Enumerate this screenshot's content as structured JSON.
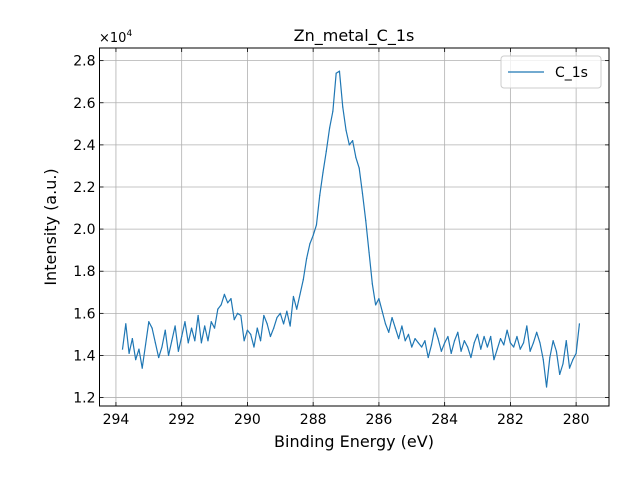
{
  "chart_data": {
    "type": "line",
    "title": "Zn_metal_C_1s",
    "xlabel": "Binding Energy (eV)",
    "ylabel": "Intensity (a.u.)",
    "xlim": [
      294.5,
      279.0
    ],
    "ylim": [
      11600,
      28600
    ],
    "x_reversed": true,
    "y_scale_label": "×10",
    "y_scale_exponent": "4",
    "xticks": [
      294,
      292,
      290,
      288,
      286,
      284,
      282,
      280
    ],
    "xtick_labels": [
      "294",
      "292",
      "290",
      "288",
      "286",
      "284",
      "282",
      "280"
    ],
    "yticks": [
      12000,
      14000,
      16000,
      18000,
      20000,
      22000,
      24000,
      26000,
      28000
    ],
    "ytick_labels": [
      "1.2",
      "1.4",
      "1.6",
      "1.8",
      "2.0",
      "2.2",
      "2.4",
      "2.6",
      "2.8"
    ],
    "grid": true,
    "legend_position": "top-right",
    "series": [
      {
        "name": "C_1s",
        "color": "#1f77b4",
        "x": [
          293.8,
          293.7,
          293.6,
          293.5,
          293.4,
          293.3,
          293.2,
          293.1,
          293.0,
          292.9,
          292.8,
          292.7,
          292.6,
          292.5,
          292.4,
          292.3,
          292.2,
          292.1,
          292.0,
          291.9,
          291.8,
          291.7,
          291.6,
          291.5,
          291.4,
          291.3,
          291.2,
          291.1,
          291.0,
          290.9,
          290.8,
          290.7,
          290.6,
          290.5,
          290.4,
          290.3,
          290.2,
          290.1,
          290.0,
          289.9,
          289.8,
          289.7,
          289.6,
          289.5,
          289.4,
          289.3,
          289.2,
          289.1,
          289.0,
          288.9,
          288.8,
          288.7,
          288.6,
          288.5,
          288.4,
          288.3,
          288.2,
          288.1,
          288.0,
          287.9,
          287.8,
          287.7,
          287.6,
          287.5,
          287.4,
          287.3,
          287.2,
          287.1,
          287.0,
          286.9,
          286.8,
          286.7,
          286.6,
          286.5,
          286.4,
          286.3,
          286.2,
          286.1,
          286.0,
          285.9,
          285.8,
          285.7,
          285.6,
          285.5,
          285.4,
          285.3,
          285.2,
          285.1,
          285.0,
          284.9,
          284.8,
          284.7,
          284.6,
          284.5,
          284.4,
          284.3,
          284.2,
          284.1,
          284.0,
          283.9,
          283.8,
          283.7,
          283.6,
          283.5,
          283.4,
          283.3,
          283.2,
          283.1,
          283.0,
          282.9,
          282.8,
          282.7,
          282.6,
          282.5,
          282.4,
          282.3,
          282.2,
          282.1,
          282.0,
          281.9,
          281.8,
          281.7,
          281.6,
          281.5,
          281.4,
          281.3,
          281.2,
          281.1,
          281.0,
          280.9,
          280.8,
          280.7,
          280.6,
          280.5,
          280.4,
          280.3,
          280.2,
          280.1,
          280.0,
          279.9
        ],
        "values": [
          14300,
          15500,
          14100,
          14800,
          13800,
          14300,
          13400,
          14500,
          15600,
          15300,
          14600,
          13900,
          14400,
          15200,
          14000,
          14700,
          15400,
          14200,
          14900,
          15600,
          14600,
          15300,
          14700,
          15900,
          14600,
          15400,
          14700,
          15600,
          15300,
          16200,
          16400,
          16900,
          16500,
          16700,
          15700,
          16000,
          15900,
          14700,
          15200,
          15000,
          14400,
          15300,
          14700,
          15900,
          15500,
          14900,
          15300,
          15800,
          16000,
          15500,
          16100,
          15400,
          16800,
          16200,
          16900,
          17600,
          18600,
          19300,
          19700,
          20200,
          21600,
          22700,
          23700,
          24800,
          25600,
          27400,
          27500,
          25800,
          24700,
          24000,
          24200,
          23400,
          22900,
          21700,
          20400,
          18900,
          17400,
          16400,
          16700,
          16100,
          15500,
          15100,
          15800,
          15300,
          14800,
          15400,
          14700,
          15000,
          14400,
          14800,
          14600,
          14400,
          14700,
          13900,
          14500,
          15300,
          14800,
          14200,
          14600,
          14900,
          14100,
          14700,
          15100,
          14200,
          14700,
          14400,
          13900,
          14600,
          15000,
          14300,
          14900,
          14400,
          14900,
          13800,
          14300,
          14800,
          14500,
          15200,
          14600,
          14400,
          14900,
          14300,
          14600,
          15400,
          14200,
          14600,
          15100,
          14600,
          13800,
          12500,
          13900,
          14700,
          14200,
          13100,
          13600,
          14700,
          13400,
          13800,
          14100,
          15500
        ]
      }
    ]
  }
}
